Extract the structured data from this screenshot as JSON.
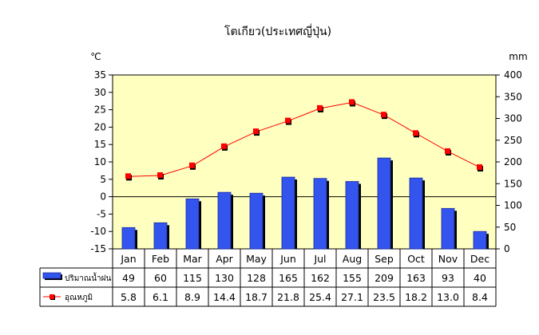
{
  "chart_data": {
    "type": "bar+line",
    "title": "โตเกียว(ประเทศญี่ปุ่น)",
    "left_unit": "℃",
    "right_unit": "mm",
    "categories": [
      "Jan",
      "Feb",
      "Mar",
      "Apr",
      "May",
      "Jun",
      "Jul",
      "Aug",
      "Sep",
      "Oct",
      "Nov",
      "Dec"
    ],
    "left_axis": {
      "min": -15,
      "max": 35,
      "step": 5,
      "ticks": [
        "35",
        "30",
        "25",
        "20",
        "15",
        "10",
        "5",
        "0",
        "-5",
        "-10",
        "-15"
      ]
    },
    "right_axis": {
      "min": 0,
      "max": 400,
      "step": 50,
      "ticks": [
        "400",
        "350",
        "300",
        "250",
        "200",
        "150",
        "100",
        "50",
        "0"
      ]
    },
    "series": [
      {
        "name": "ปริมาณน้ำฝน",
        "type": "bar",
        "axis": "right",
        "color": "#3355ee",
        "values": [
          49,
          60,
          115,
          130,
          128,
          165,
          162,
          155,
          209,
          163,
          93,
          40
        ],
        "labels": [
          "49",
          "60",
          "115",
          "130",
          "128",
          "165",
          "162",
          "155",
          "209",
          "163",
          "93",
          "40"
        ]
      },
      {
        "name": "อุณหภูมิ",
        "type": "line",
        "axis": "left",
        "color": "#ff0000",
        "values": [
          5.8,
          6.1,
          8.9,
          14.4,
          18.7,
          21.8,
          25.4,
          27.1,
          23.5,
          18.2,
          13.0,
          8.4
        ],
        "labels": [
          "5.8",
          "6.1",
          "8.9",
          "14.4",
          "18.7",
          "21.8",
          "25.4",
          "27.1",
          "23.5",
          "18.2",
          "13.0",
          "8.4"
        ]
      }
    ],
    "plot_background": "#ffffc0",
    "grid": false,
    "legend": "data-table"
  }
}
